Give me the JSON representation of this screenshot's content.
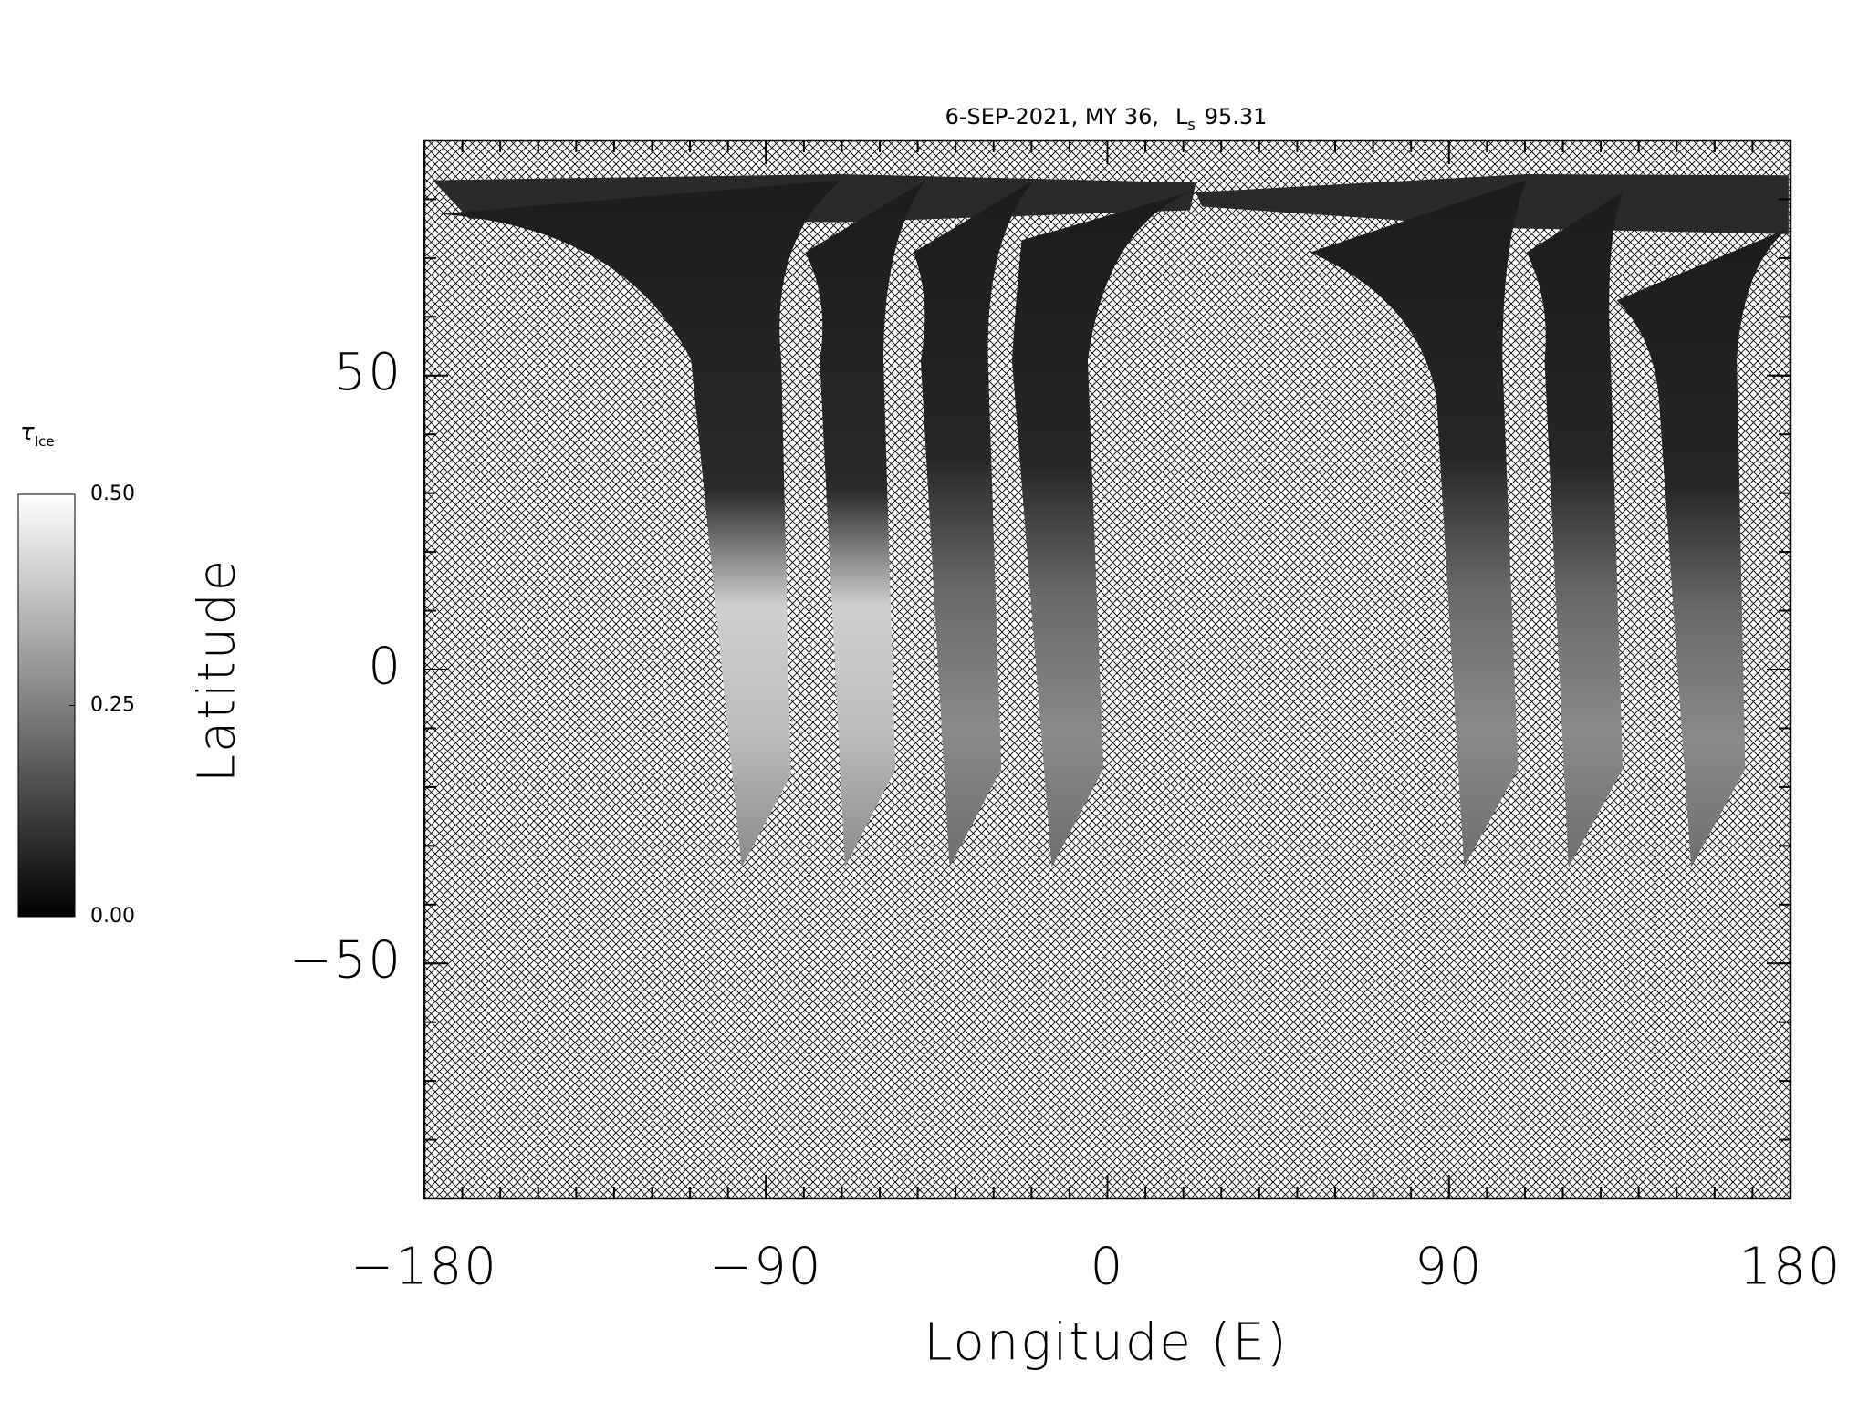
{
  "chart_data": {
    "type": "map",
    "title": {
      "text": "6-SEP-2021, MY 36,",
      "ls_symbol": "L",
      "ls_subscript": "s",
      "ls_value": "95.31"
    },
    "x_label": "Longitude (E)",
    "y_label": "Latitude",
    "xlim": [
      -180,
      180
    ],
    "xticks": [
      {
        "value": -180,
        "label": "−180"
      },
      {
        "value": -90,
        "label": "−90"
      },
      0,
      90,
      180
    ],
    "xminor": 10,
    "ylim": [
      -90,
      90
    ],
    "yticks": [
      {
        "value": -50,
        "label": "−50"
      },
      0,
      50
    ],
    "yminor": 10,
    "colorbar": {
      "label": "τ",
      "label_subscript": "Ice",
      "clim": [
        0,
        0.5
      ],
      "ticks": [
        {
          "value": 0,
          "label": "0.00"
        },
        {
          "value": 0.25,
          "label": "0.25"
        },
        {
          "value": 0.5,
          "label": "0.50"
        }
      ]
    }
  }
}
